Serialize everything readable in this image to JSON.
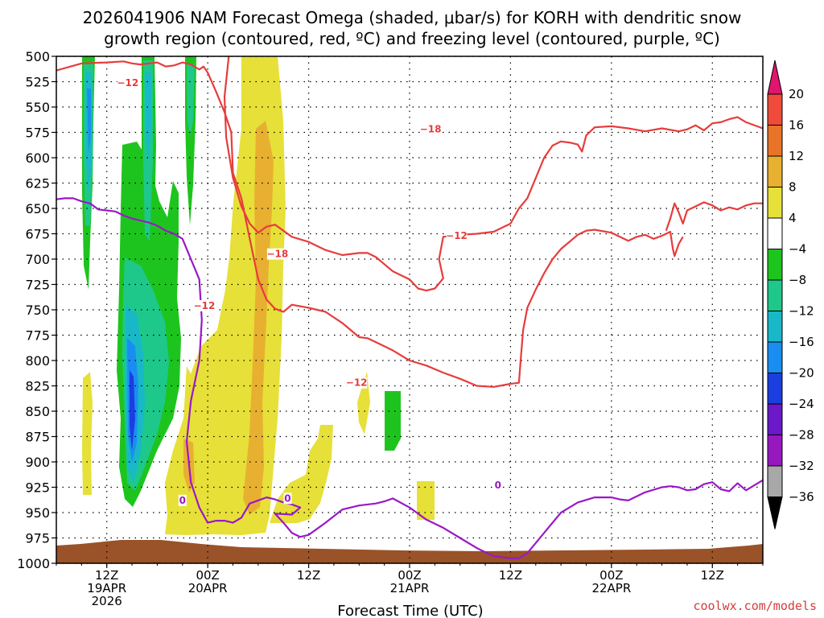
{
  "chart_data": {
    "type": "time-height",
    "title_line1": "2026041906 NAM Forecast Omega (shaded, μbar/s) for KORH with dendritic snow",
    "title_line2": "growth region (contoured, red, ºC) and freezing level (contoured, purple, ºC)",
    "xlabel": "Forecast Time (UTC)",
    "ylabel": "Pressure (hPa)",
    "credit": "coolwx.com/models",
    "y_ticks": [
      500,
      525,
      550,
      575,
      600,
      625,
      650,
      675,
      700,
      725,
      750,
      775,
      800,
      825,
      850,
      875,
      900,
      925,
      950,
      975,
      1000
    ],
    "x_ticks": [
      {
        "hour": 6,
        "line1": "12Z",
        "line2": "19APR",
        "line3": "2026"
      },
      {
        "hour": 18,
        "line1": "00Z",
        "line2": "20APR",
        "line3": ""
      },
      {
        "hour": 30,
        "line1": "12Z",
        "line2": "",
        "line3": ""
      },
      {
        "hour": 42,
        "line1": "00Z",
        "line2": "21APR",
        "line3": ""
      },
      {
        "hour": 54,
        "line1": "12Z",
        "line2": "",
        "line3": ""
      },
      {
        "hour": 66,
        "line1": "00Z",
        "line2": "22APR",
        "line3": ""
      },
      {
        "hour": 78,
        "line1": "12Z",
        "line2": "",
        "line3": ""
      }
    ],
    "x_range_hours": [
      0,
      84
    ],
    "p_range": [
      500,
      1000
    ],
    "colorbar": {
      "levels": [
        "20",
        "16",
        "12",
        "8",
        "4",
        "−4",
        "−8",
        "−12",
        "−16",
        "−20",
        "−24",
        "−28",
        "−32",
        "−36"
      ],
      "colors": [
        "#e0156e",
        "#f04b3a",
        "#e8742a",
        "#e8b030",
        "#e6e038",
        "#ffffff",
        "#1ec41e",
        "#1ec88a",
        "#18b8c8",
        "#1a8ef0",
        "#1a3ee0",
        "#6a18c8",
        "#9818c0",
        "#a8a8a8",
        "#000000"
      ]
    },
    "contours": [
      {
        "label": "−12",
        "color": "#e83c3c",
        "points": [
          [
            0,
            514
          ],
          [
            3,
            507
          ],
          [
            6,
            506
          ],
          [
            8,
            505
          ],
          [
            9,
            507
          ],
          [
            10,
            508
          ],
          [
            12,
            506
          ],
          [
            13,
            510
          ],
          [
            14,
            509
          ],
          [
            15,
            506
          ],
          [
            16,
            508
          ],
          [
            17,
            513
          ],
          [
            17.5,
            510
          ],
          [
            18,
            516
          ],
          [
            19,
            535
          ],
          [
            20,
            555
          ],
          [
            20.8,
            575
          ],
          [
            21,
            615
          ],
          [
            22,
            640
          ],
          [
            23,
            680
          ],
          [
            24,
            720
          ],
          [
            25,
            740
          ],
          [
            26,
            749
          ],
          [
            27,
            752
          ],
          [
            28,
            745
          ],
          [
            30,
            748
          ],
          [
            32,
            752
          ],
          [
            34,
            763
          ],
          [
            36,
            777
          ],
          [
            37,
            778
          ],
          [
            38,
            782
          ],
          [
            40,
            790
          ],
          [
            42,
            800
          ],
          [
            44,
            805
          ],
          [
            46,
            812
          ],
          [
            48,
            818
          ],
          [
            50,
            825
          ],
          [
            52,
            826
          ],
          [
            54,
            823
          ],
          [
            55,
            822
          ],
          [
            55.2,
            800
          ],
          [
            55.5,
            770
          ],
          [
            56,
            748
          ],
          [
            57,
            730
          ],
          [
            58,
            714
          ],
          [
            59,
            700
          ],
          [
            60,
            690
          ],
          [
            61,
            683
          ],
          [
            62,
            676
          ],
          [
            63,
            672
          ],
          [
            64,
            671
          ],
          [
            66,
            674
          ],
          [
            67,
            678
          ],
          [
            68,
            682
          ],
          [
            69,
            678
          ],
          [
            70,
            676
          ],
          [
            71,
            680
          ],
          [
            72,
            677
          ],
          [
            73,
            673
          ],
          [
            73.3,
            690
          ],
          [
            73.5,
            697
          ],
          [
            74,
            685
          ],
          [
            74.5,
            678
          ]
        ]
      },
      {
        "label": "−18",
        "color": "#e83c3c",
        "points": [
          [
            20.5,
            500
          ],
          [
            20,
            540
          ],
          [
            20.2,
            580
          ],
          [
            21,
            620
          ],
          [
            22,
            648
          ],
          [
            23,
            665
          ],
          [
            24,
            674
          ],
          [
            25,
            668
          ],
          [
            26,
            666
          ],
          [
            27,
            672
          ],
          [
            28,
            678
          ],
          [
            30,
            683
          ],
          [
            32,
            691
          ],
          [
            34,
            696
          ],
          [
            36,
            694
          ],
          [
            37,
            694
          ],
          [
            38,
            698
          ],
          [
            39,
            705
          ],
          [
            40,
            712
          ],
          [
            42,
            720
          ],
          [
            43,
            729
          ],
          [
            44,
            731
          ],
          [
            45,
            729
          ],
          [
            46,
            719
          ],
          [
            45.5,
            700
          ],
          [
            46,
            678
          ],
          [
            48,
            676
          ],
          [
            50,
            675
          ],
          [
            52,
            673
          ],
          [
            54,
            665
          ],
          [
            55,
            650
          ],
          [
            56,
            640
          ],
          [
            57,
            620
          ],
          [
            58,
            600
          ],
          [
            59,
            588
          ],
          [
            60,
            584
          ],
          [
            61,
            585
          ],
          [
            62,
            587
          ],
          [
            62.5,
            594
          ],
          [
            63,
            578
          ],
          [
            64,
            570
          ],
          [
            66,
            569
          ],
          [
            68,
            571
          ],
          [
            70,
            574
          ],
          [
            72,
            571
          ],
          [
            74,
            574
          ],
          [
            75,
            572
          ],
          [
            76,
            568
          ],
          [
            77,
            573
          ],
          [
            78,
            566
          ],
          [
            79,
            565
          ],
          [
            80,
            562
          ],
          [
            81,
            560
          ],
          [
            82,
            565
          ],
          [
            84,
            571
          ]
        ]
      },
      {
        "label": "−18b",
        "color": "#e83c3c",
        "points": [
          [
            72.5,
            672
          ],
          [
            73,
            660
          ],
          [
            73.5,
            645
          ],
          [
            74,
            654
          ],
          [
            74.5,
            665
          ],
          [
            75,
            652
          ],
          [
            76,
            648
          ],
          [
            77,
            644
          ],
          [
            78,
            647
          ],
          [
            79,
            652
          ],
          [
            80,
            649
          ],
          [
            81,
            651
          ],
          [
            82,
            647
          ],
          [
            83,
            645
          ],
          [
            84,
            645
          ]
        ]
      },
      {
        "label": "0",
        "color": "#9a18c8",
        "points": [
          [
            0,
            641
          ],
          [
            1,
            640
          ],
          [
            2,
            640
          ],
          [
            3,
            643
          ],
          [
            4,
            645
          ],
          [
            5,
            651
          ],
          [
            6,
            652
          ],
          [
            7,
            653
          ],
          [
            8,
            657
          ],
          [
            9,
            660
          ],
          [
            10,
            662
          ],
          [
            11,
            664
          ],
          [
            12,
            667
          ],
          [
            13,
            672
          ],
          [
            14,
            675
          ],
          [
            15,
            680
          ],
          [
            16,
            700
          ],
          [
            17,
            720
          ],
          [
            17.3,
            760
          ],
          [
            17,
            800
          ],
          [
            16,
            840
          ],
          [
            15.5,
            880
          ],
          [
            16,
            920
          ],
          [
            17,
            945
          ],
          [
            18,
            960
          ],
          [
            19,
            958
          ],
          [
            20,
            958
          ],
          [
            21,
            960
          ],
          [
            22,
            955
          ],
          [
            23,
            941
          ],
          [
            25,
            935
          ],
          [
            26,
            937
          ],
          [
            27,
            940
          ],
          [
            28,
            942
          ],
          [
            29,
            945
          ],
          [
            29,
            945
          ],
          [
            28,
            952
          ],
          [
            26,
            951
          ],
          [
            27,
            960
          ],
          [
            28,
            970
          ],
          [
            29,
            974
          ],
          [
            30,
            972
          ],
          [
            32,
            960
          ],
          [
            34,
            947
          ],
          [
            36,
            943
          ],
          [
            38,
            941
          ],
          [
            39,
            939
          ],
          [
            40,
            936
          ],
          [
            42,
            945
          ],
          [
            44,
            957
          ],
          [
            46,
            965
          ],
          [
            48,
            975
          ],
          [
            50,
            985
          ],
          [
            52,
            993
          ],
          [
            54,
            995
          ],
          [
            55,
            995
          ],
          [
            56,
            990
          ],
          [
            58,
            970
          ],
          [
            60,
            950
          ],
          [
            62,
            940
          ],
          [
            64,
            935
          ],
          [
            66,
            935
          ],
          [
            67,
            937
          ],
          [
            68,
            938
          ],
          [
            70,
            930
          ],
          [
            72,
            925
          ],
          [
            73,
            924
          ],
          [
            74,
            925
          ],
          [
            75,
            928
          ],
          [
            76,
            927
          ],
          [
            77,
            922
          ],
          [
            78,
            920
          ],
          [
            79,
            927
          ],
          [
            80,
            929
          ],
          [
            81,
            921
          ],
          [
            82,
            928
          ],
          [
            84,
            918
          ]
        ]
      }
    ]
  }
}
